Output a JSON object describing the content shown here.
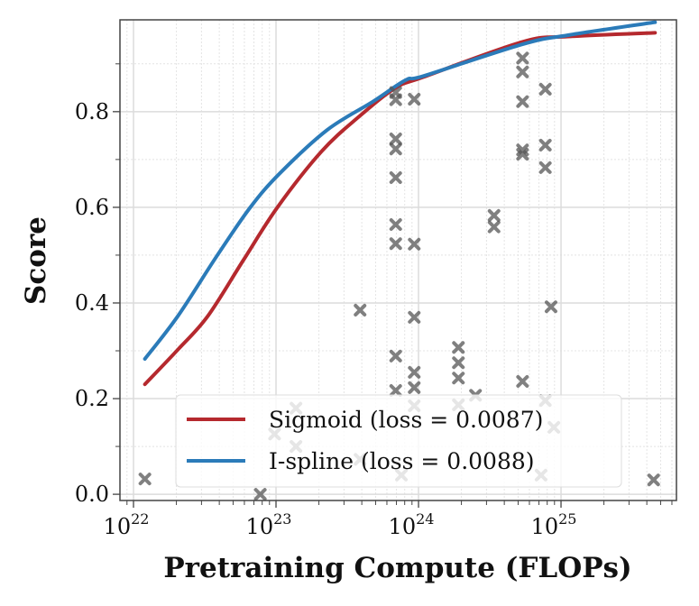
{
  "chart_data": {
    "type": "scatter",
    "title": "",
    "xlabel": "Pretraining Compute (FLOPs)",
    "ylabel": "Score",
    "xscale": "log",
    "xlim_log10": [
      21.905,
      25.81
    ],
    "ylim": [
      -0.013,
      0.992
    ],
    "grid": true,
    "legend_placement": "lower-center",
    "x_ticks": [
      {
        "exp": 22,
        "label": "10",
        "sup": "22"
      },
      {
        "exp": 23,
        "label": "10",
        "sup": "23"
      },
      {
        "exp": 24,
        "label": "10",
        "sup": "24"
      },
      {
        "exp": 25,
        "label": "10",
        "sup": "25"
      }
    ],
    "y_ticks": [
      {
        "v": 0.0,
        "label": "0.0"
      },
      {
        "v": 0.2,
        "label": "0.2"
      },
      {
        "v": 0.4,
        "label": "0.4"
      },
      {
        "v": 0.6,
        "label": "0.6"
      },
      {
        "v": 0.8,
        "label": "0.8"
      }
    ],
    "points_log10x_y": [
      [
        22.08,
        0.032
      ],
      [
        22.89,
        0.0
      ],
      [
        22.99,
        0.126
      ],
      [
        23.14,
        0.18
      ],
      [
        23.14,
        0.1
      ],
      [
        23.59,
        0.385
      ],
      [
        23.59,
        0.073
      ],
      [
        23.88,
        0.04
      ],
      [
        23.84,
        0.84
      ],
      [
        23.84,
        0.825
      ],
      [
        23.84,
        0.743
      ],
      [
        23.84,
        0.722
      ],
      [
        23.84,
        0.662
      ],
      [
        23.84,
        0.564
      ],
      [
        23.84,
        0.524
      ],
      [
        23.84,
        0.289
      ],
      [
        23.84,
        0.217
      ],
      [
        23.97,
        0.826
      ],
      [
        23.97,
        0.523
      ],
      [
        23.97,
        0.37
      ],
      [
        23.97,
        0.255
      ],
      [
        23.97,
        0.223
      ],
      [
        23.97,
        0.185
      ],
      [
        24.28,
        0.307
      ],
      [
        24.28,
        0.275
      ],
      [
        24.28,
        0.243
      ],
      [
        24.28,
        0.187
      ],
      [
        24.4,
        0.207
      ],
      [
        24.53,
        0.583
      ],
      [
        24.53,
        0.559
      ],
      [
        24.73,
        0.912
      ],
      [
        24.73,
        0.883
      ],
      [
        24.73,
        0.821
      ],
      [
        24.73,
        0.72
      ],
      [
        24.73,
        0.711
      ],
      [
        24.73,
        0.236
      ],
      [
        24.89,
        0.847
      ],
      [
        24.89,
        0.73
      ],
      [
        24.89,
        0.683
      ],
      [
        24.89,
        0.196
      ],
      [
        24.86,
        0.04
      ],
      [
        24.93,
        0.392
      ],
      [
        24.95,
        0.14
      ],
      [
        25.65,
        0.03
      ]
    ],
    "marker_color": "#555555",
    "series": [
      {
        "name": "Sigmoid (loss = 0.0087)",
        "color": "#b5292e",
        "log10x": [
          22.08,
          22.31,
          22.52,
          22.77,
          23.01,
          23.32,
          23.58,
          23.84,
          24.04,
          24.73,
          25.05,
          25.66
        ],
        "y": [
          0.23,
          0.302,
          0.372,
          0.489,
          0.6,
          0.717,
          0.789,
          0.85,
          0.873,
          0.946,
          0.957,
          0.965
        ]
      },
      {
        "name": "I-spline (loss = 0.0088)",
        "color": "#2b7bb9",
        "log10x": [
          22.08,
          22.31,
          22.58,
          22.82,
          23.03,
          23.36,
          23.68,
          23.91,
          24.04,
          24.73,
          25.05,
          25.66
        ],
        "y": [
          0.283,
          0.372,
          0.496,
          0.6,
          0.672,
          0.762,
          0.821,
          0.866,
          0.875,
          0.941,
          0.96,
          0.987
        ]
      }
    ]
  }
}
